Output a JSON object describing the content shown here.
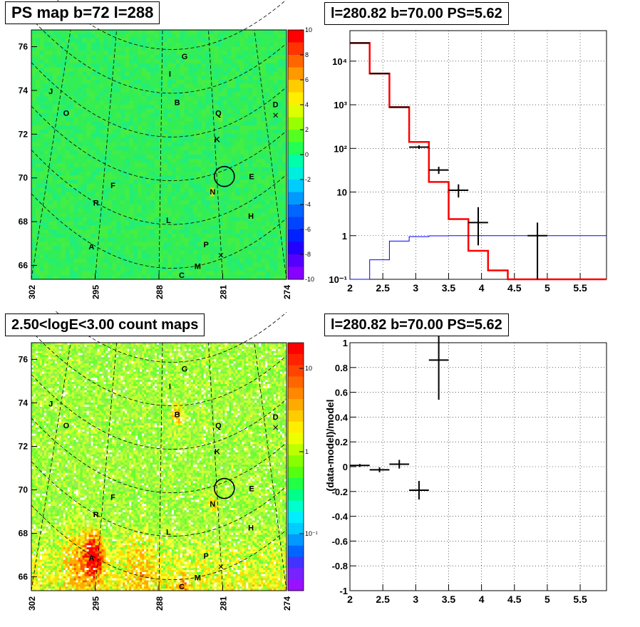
{
  "panels": {
    "tl_title": "PS map b=72 l=288",
    "tr_title": "l=280.82 b=70.00 PS=5.62",
    "bl_title": "2.50<logE<3.00 count maps",
    "br_title": "l=280.82 b=70.00 PS=5.62"
  },
  "maps": {
    "x_ticks": [
      "302",
      "295",
      "288",
      "281",
      "274"
    ],
    "y_ticks": [
      "76",
      "74",
      "72",
      "70",
      "68",
      "66"
    ],
    "sources": [
      {
        "id": "G",
        "l": 285.2,
        "b": 75.5
      },
      {
        "id": "I",
        "l": 286.6,
        "b": 74.7
      },
      {
        "id": "J",
        "l": 299.8,
        "b": 73.9
      },
      {
        "id": "B",
        "l": 286.0,
        "b": 73.4
      },
      {
        "id": "O",
        "l": 298.2,
        "b": 72.9
      },
      {
        "id": "Q",
        "l": 281.5,
        "b": 72.9
      },
      {
        "id": "D",
        "l": 275.2,
        "b": 73.3
      },
      {
        "id": "K",
        "l": 281.6,
        "b": 71.7
      },
      {
        "id": "E",
        "l": 277.8,
        "b": 70.0
      },
      {
        "id": "F",
        "l": 293.0,
        "b": 69.6
      },
      {
        "id": "N",
        "l": 282.1,
        "b": 69.3
      },
      {
        "id": "R",
        "l": 294.9,
        "b": 68.8
      },
      {
        "id": "H",
        "l": 277.9,
        "b": 68.2
      },
      {
        "id": "L",
        "l": 286.9,
        "b": 68.0
      },
      {
        "id": "A",
        "l": 295.4,
        "b": 66.8
      },
      {
        "id": "P",
        "l": 282.8,
        "b": 66.9
      },
      {
        "id": "M",
        "l": 283.8,
        "b": 65.9
      },
      {
        "id": "C",
        "l": 285.5,
        "b": 65.5
      }
    ],
    "ps_colorbar_ticks": [
      "10",
      "8",
      "6",
      "4",
      "2",
      "0",
      "-2",
      "-4",
      "-6",
      "-8",
      "-10"
    ],
    "count_colorbar_ticks": [
      "10",
      "1",
      "10⁻¹"
    ],
    "circle": {
      "l": 280.82,
      "b": 70.0
    }
  },
  "chart_data": [
    {
      "type": "heatmap",
      "title": "PS map b=72 l=288",
      "xlabel": "",
      "ylabel": "",
      "xlim": [
        302,
        274
      ],
      "ylim": [
        65.3,
        76.7
      ],
      "z_range": [
        -10,
        10
      ]
    },
    {
      "type": "line",
      "title": "l=280.82 b=70.00 PS=5.62",
      "xlabel": "",
      "ylabel": "",
      "xlim": [
        2,
        5.9
      ],
      "ylim": [
        0.1,
        50000
      ],
      "yscale": "log",
      "x_ticks": [
        "2",
        "2.5",
        "3",
        "3.5",
        "4",
        "4.5",
        "5",
        "5.5"
      ],
      "y_ticks": [
        {
          "v": 10000,
          "t": "10⁴"
        },
        {
          "v": 1000,
          "t": "10³"
        },
        {
          "v": 100,
          "t": "10²"
        },
        {
          "v": 10,
          "t": "10"
        },
        {
          "v": 1,
          "t": "1"
        },
        {
          "v": 0.1,
          "t": "10⁻¹"
        }
      ],
      "series": [
        {
          "color": "#ff0000",
          "style": "step",
          "edges": [
            2.0,
            2.3,
            2.6,
            2.9,
            3.2,
            3.5,
            3.8,
            4.1,
            4.4,
            5.9
          ],
          "values": [
            26000,
            5200,
            880,
            140,
            17,
            2.4,
            0.45,
            0.16,
            0.1
          ]
        },
        {
          "color": "#0000ff",
          "style": "step",
          "edges": [
            2.0,
            2.3,
            2.6,
            2.9,
            3.2,
            3.5,
            5.9
          ],
          "values": [
            0.1,
            0.28,
            0.75,
            0.95,
            0.99,
            1.0
          ]
        },
        {
          "color": "#000000",
          "style": "errorbar",
          "points": [
            {
              "x": 2.15,
              "y": 26000,
              "xerr": 0.15,
              "ylo": 25500,
              "yhi": 26500
            },
            {
              "x": 2.45,
              "y": 5200,
              "xerr": 0.15,
              "ylo": 5050,
              "yhi": 5350
            },
            {
              "x": 2.75,
              "y": 880,
              "xerr": 0.15,
              "ylo": 850,
              "yhi": 910
            },
            {
              "x": 3.05,
              "y": 107,
              "xerr": 0.15,
              "ylo": 97,
              "yhi": 117
            },
            {
              "x": 3.35,
              "y": 32,
              "xerr": 0.15,
              "ylo": 26,
              "yhi": 38
            },
            {
              "x": 3.65,
              "y": 11,
              "xerr": 0.15,
              "ylo": 7.5,
              "yhi": 15
            },
            {
              "x": 3.95,
              "y": 2,
              "xerr": 0.15,
              "ylo": 0.6,
              "yhi": 4.5
            },
            {
              "x": 4.85,
              "y": 1.0,
              "xerr": 0.15,
              "ylo": 0.1,
              "yhi": 2.0
            }
          ]
        }
      ]
    },
    {
      "type": "heatmap",
      "title": "2.50<logE<3.00 count maps",
      "xlabel": "",
      "ylabel": "",
      "xlim": [
        302,
        274
      ],
      "ylim": [
        65.3,
        76.7
      ],
      "scale": "log"
    },
    {
      "type": "scatter",
      "title": "l=280.82 b=70.00 PS=5.62",
      "xlabel": "",
      "ylabel": "(data-model)/model",
      "xlim": [
        2,
        5.9
      ],
      "ylim": [
        -1,
        1
      ],
      "x_ticks": [
        "2",
        "2.5",
        "3",
        "3.5",
        "4",
        "4.5",
        "5",
        "5.5"
      ],
      "y_ticks": [
        "1",
        "0.8",
        "0.6",
        "0.4",
        "0.2",
        "0",
        "-0.2",
        "-0.4",
        "-0.6",
        "-0.8",
        "-1"
      ],
      "points": [
        {
          "x": 2.15,
          "y": 0.01,
          "xerr": 0.15,
          "yerr": 0.012
        },
        {
          "x": 2.45,
          "y": -0.025,
          "xerr": 0.15,
          "yerr": 0.02
        },
        {
          "x": 2.75,
          "y": 0.02,
          "xerr": 0.15,
          "yerr": 0.035
        },
        {
          "x": 3.05,
          "y": -0.19,
          "xerr": 0.15,
          "yerr": 0.075
        },
        {
          "x": 3.35,
          "y": 0.86,
          "xerr": 0.15,
          "yerr": 0.32
        }
      ]
    }
  ]
}
